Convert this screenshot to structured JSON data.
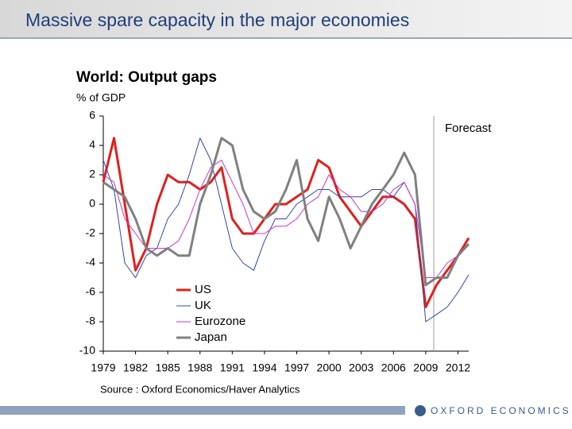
{
  "slide": {
    "title": "Massive spare capacity in the major economies",
    "brand": "OXFORD ECONOMICS"
  },
  "chart_data": {
    "type": "line",
    "title": "World: Output gaps",
    "y_label": "% of GDP",
    "source": "Source : Oxford Economics/Haver Analytics",
    "x": [
      1979,
      1980,
      1981,
      1982,
      1983,
      1984,
      1985,
      1986,
      1987,
      1988,
      1989,
      1990,
      1991,
      1992,
      1993,
      1994,
      1995,
      1996,
      1997,
      1998,
      1999,
      2000,
      2001,
      2002,
      2003,
      2004,
      2005,
      2006,
      2007,
      2008,
      2009,
      2010,
      2011,
      2012,
      2013
    ],
    "series": [
      {
        "name": "US",
        "color": "#e0201c",
        "values": [
          1.5,
          4.5,
          0,
          -4.5,
          -3,
          0,
          2,
          1.5,
          1.5,
          1,
          1.5,
          2.5,
          -1,
          -2,
          -2,
          -1,
          0,
          0,
          0.5,
          1,
          3,
          2.5,
          0.5,
          -0.5,
          -1.5,
          -0.5,
          0.5,
          0.5,
          0,
          -1,
          -7,
          -5.5,
          -4.5,
          -3.5,
          -2.3
        ]
      },
      {
        "name": "UK",
        "color": "#3344aa",
        "values": [
          3,
          1,
          -4,
          -5,
          -3.5,
          -3,
          -1,
          0,
          2,
          4.5,
          3,
          0,
          -3,
          -4,
          -4.5,
          -2.5,
          -1,
          -1,
          0,
          0.5,
          1,
          1,
          0.5,
          0.5,
          0.5,
          1,
          1,
          0.5,
          1.5,
          0,
          -8,
          -7.5,
          -7,
          -6,
          -4.8
        ]
      },
      {
        "name": "Eurozone",
        "color": "#cc33cc",
        "values": [
          2,
          1.5,
          -1,
          -2,
          -3,
          -3,
          -3,
          -2.5,
          -1,
          1,
          2.5,
          3,
          1.5,
          0,
          -2,
          -2,
          -1.5,
          -1.5,
          -1,
          0,
          0.5,
          2,
          1,
          0.5,
          -0.5,
          -0.5,
          0,
          1,
          1.5,
          0,
          -5,
          -5,
          -4,
          -3.5,
          -2.8
        ]
      },
      {
        "name": "Japan",
        "color": "#808080",
        "values": [
          1.5,
          1,
          0.5,
          -1,
          -3,
          -3.5,
          -3,
          -3.5,
          -3.5,
          0,
          2,
          4.5,
          4,
          1,
          -0.5,
          -1,
          -0.5,
          1,
          3,
          -1,
          -2.5,
          0.5,
          -1,
          -3,
          -1.5,
          0,
          1,
          2,
          3.5,
          2,
          -5.5,
          -5,
          -5,
          -3.5,
          -2.7
        ]
      }
    ],
    "xlim": [
      1979,
      2013
    ],
    "xticks": [
      1979,
      1982,
      1985,
      1988,
      1991,
      1994,
      1997,
      2000,
      2003,
      2006,
      2009,
      2012
    ],
    "ylim": [
      -10,
      6
    ],
    "yticks": [
      -10,
      -8,
      -6,
      -4,
      -2,
      0,
      2,
      4,
      6
    ],
    "annotations": [
      {
        "text": "Forecast",
        "x": 2009.75
      }
    ],
    "grid": false,
    "legend": "lower left"
  }
}
